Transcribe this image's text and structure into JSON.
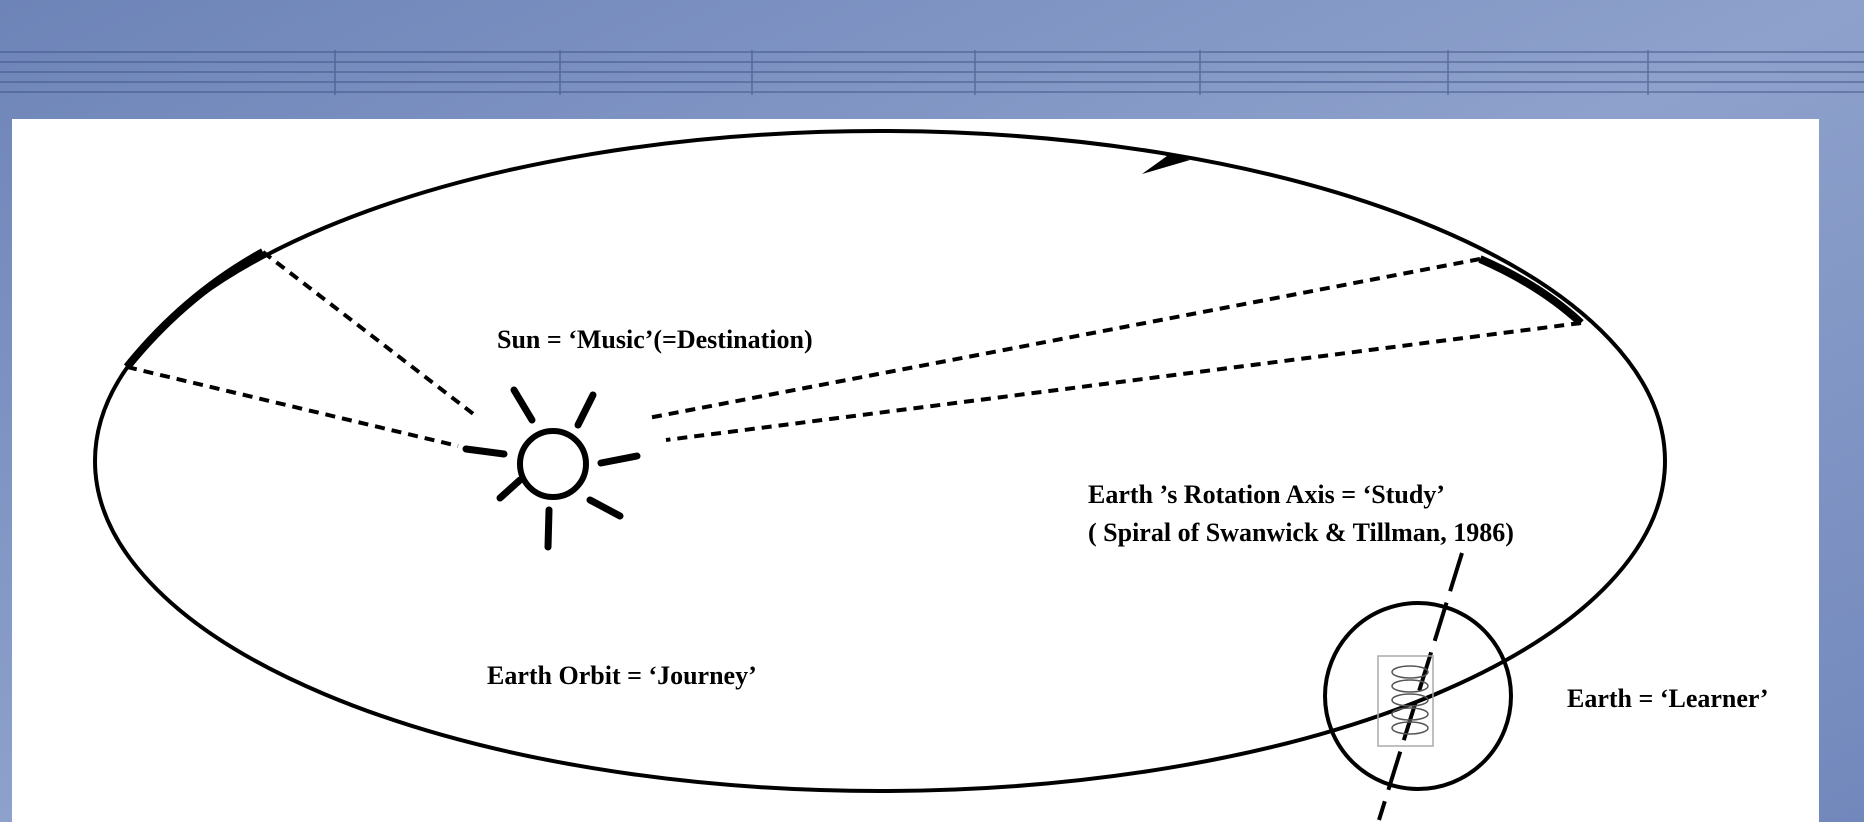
{
  "diagram": {
    "sun_label": "Sun = ‘Music’(=Destination)",
    "axis_label": "Earth ’s Rotation Axis = ‘Study’",
    "axis_source": "( Spiral of Swanwick & Tillman, 1986)",
    "orbit_label": "Earth Orbit = ‘Journey’",
    "earth_label": "Earth = ‘Learner’"
  }
}
